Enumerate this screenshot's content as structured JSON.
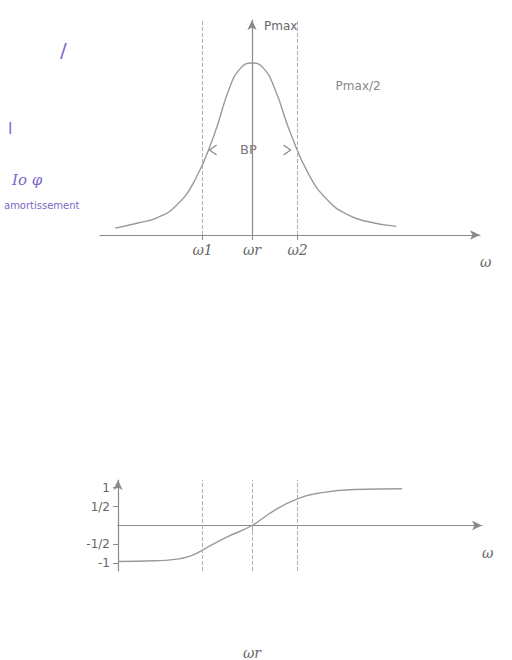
{
  "chart_data": [
    {
      "type": "line",
      "y_label": "Pmax",
      "x_label": "ω",
      "annotations": [
        "Pmax/2",
        "BP"
      ],
      "x": [
        -3.6,
        -3,
        -2.5,
        -2,
        -1.5,
        -1,
        -0.6,
        -0.3,
        0,
        0.3,
        0.6,
        1,
        1.5,
        2,
        2.5,
        3,
        3.8
      ],
      "values": [
        0.04,
        0.07,
        0.1,
        0.17,
        0.32,
        0.58,
        0.85,
        0.97,
        1,
        0.97,
        0.85,
        0.6,
        0.35,
        0.2,
        0.12,
        0.08,
        0.05
      ],
      "xlim": [
        -4,
        6
      ],
      "ylim": [
        0,
        1.25
      ],
      "xticks": [
        {
          "value": -1.3,
          "label": "ω1"
        },
        {
          "value": 0,
          "label": "ωr"
        },
        {
          "value": 1.2,
          "label": "ω2"
        }
      ],
      "markers": [
        -1.3,
        1.2
      ],
      "tick_labels": "x",
      "grid": false,
      "color": "#9a9a9a"
    },
    {
      "type": "line",
      "x_label": "ω",
      "x": [
        0,
        1,
        1.5,
        2,
        2.5,
        3,
        3.68,
        4.3,
        4.93,
        5.5,
        6.5,
        7.8
      ],
      "values": [
        -0.95,
        -0.93,
        -0.9,
        -0.8,
        -0.55,
        -0.3,
        0,
        0.4,
        0.7,
        0.85,
        0.95,
        0.97
      ],
      "xlim": [
        0,
        10
      ],
      "ylim": [
        -1.2,
        1.2
      ],
      "xticks": [
        {
          "value": 3.68,
          "label": "ωr"
        }
      ],
      "yticks": [
        -1,
        {
          "value": -0.5,
          "label": "-1/2"
        },
        {
          "value": 0.5,
          "label": "1/2"
        },
        1
      ],
      "markers": [
        2.32,
        3.68,
        4.93
      ],
      "grid": false,
      "color": "#9a9a9a"
    }
  ],
  "notes": {
    "texts": [
      "/",
      "l",
      "Io φ",
      "amortissement"
    ],
    "color": "#7b68c8"
  }
}
